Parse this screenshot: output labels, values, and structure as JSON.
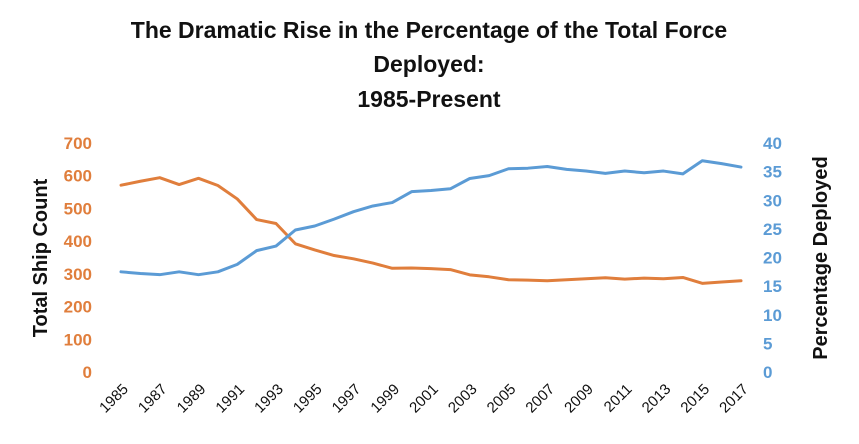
{
  "chart_data": {
    "type": "line",
    "title_lines": [
      "The Dramatic Rise in the Percentage of the Total Force",
      "Deployed:",
      "1985-Present"
    ],
    "ylabel": "Total Ship Count",
    "y2label": "Percentage Deployed",
    "ylim": [
      0,
      700
    ],
    "y2lim": [
      0,
      40
    ],
    "yticks": [
      "0",
      "100",
      "200",
      "300",
      "400",
      "500",
      "600",
      "700"
    ],
    "y2ticks": [
      "0",
      "5",
      "10",
      "15",
      "20",
      "25",
      "30",
      "35",
      "40"
    ],
    "x": [
      1985,
      1986,
      1987,
      1988,
      1989,
      1990,
      1991,
      1992,
      1993,
      1994,
      1995,
      1996,
      1997,
      1998,
      1999,
      2000,
      2001,
      2002,
      2003,
      2004,
      2005,
      2006,
      2007,
      2008,
      2009,
      2010,
      2011,
      2012,
      2013,
      2014,
      2015,
      2016,
      2017
    ],
    "xticks": [
      "1985",
      "1987",
      "1989",
      "1991",
      "1993",
      "1995",
      "1997",
      "1999",
      "2001",
      "2003",
      "2005",
      "2007",
      "2009",
      "2011",
      "2013",
      "2015",
      "2017"
    ],
    "grid": false,
    "legend": "none",
    "series": [
      {
        "name": "Total Ship Count",
        "axis": "left",
        "color": "#E07E3C",
        "values": [
          571,
          583,
          594,
          573,
          592,
          570,
          529,
          466,
          454,
          392,
          373,
          356,
          346,
          333,
          317,
          318,
          316,
          313,
          297,
          291,
          282,
          281,
          279,
          282,
          285,
          288,
          284,
          287,
          285,
          289,
          271,
          275,
          279
        ]
      },
      {
        "name": "Percentage Deployed",
        "axis": "right",
        "color": "#5B9BD5",
        "values": [
          17.5,
          17.2,
          17.0,
          17.5,
          17.0,
          17.5,
          18.8,
          21.2,
          22.0,
          24.8,
          25.5,
          26.7,
          28.0,
          29.0,
          29.6,
          31.5,
          31.7,
          32.0,
          33.8,
          34.3,
          35.5,
          35.6,
          35.9,
          35.4,
          35.1,
          34.7,
          35.1,
          34.8,
          35.1,
          34.6,
          36.9,
          36.4,
          35.8
        ]
      }
    ]
  }
}
